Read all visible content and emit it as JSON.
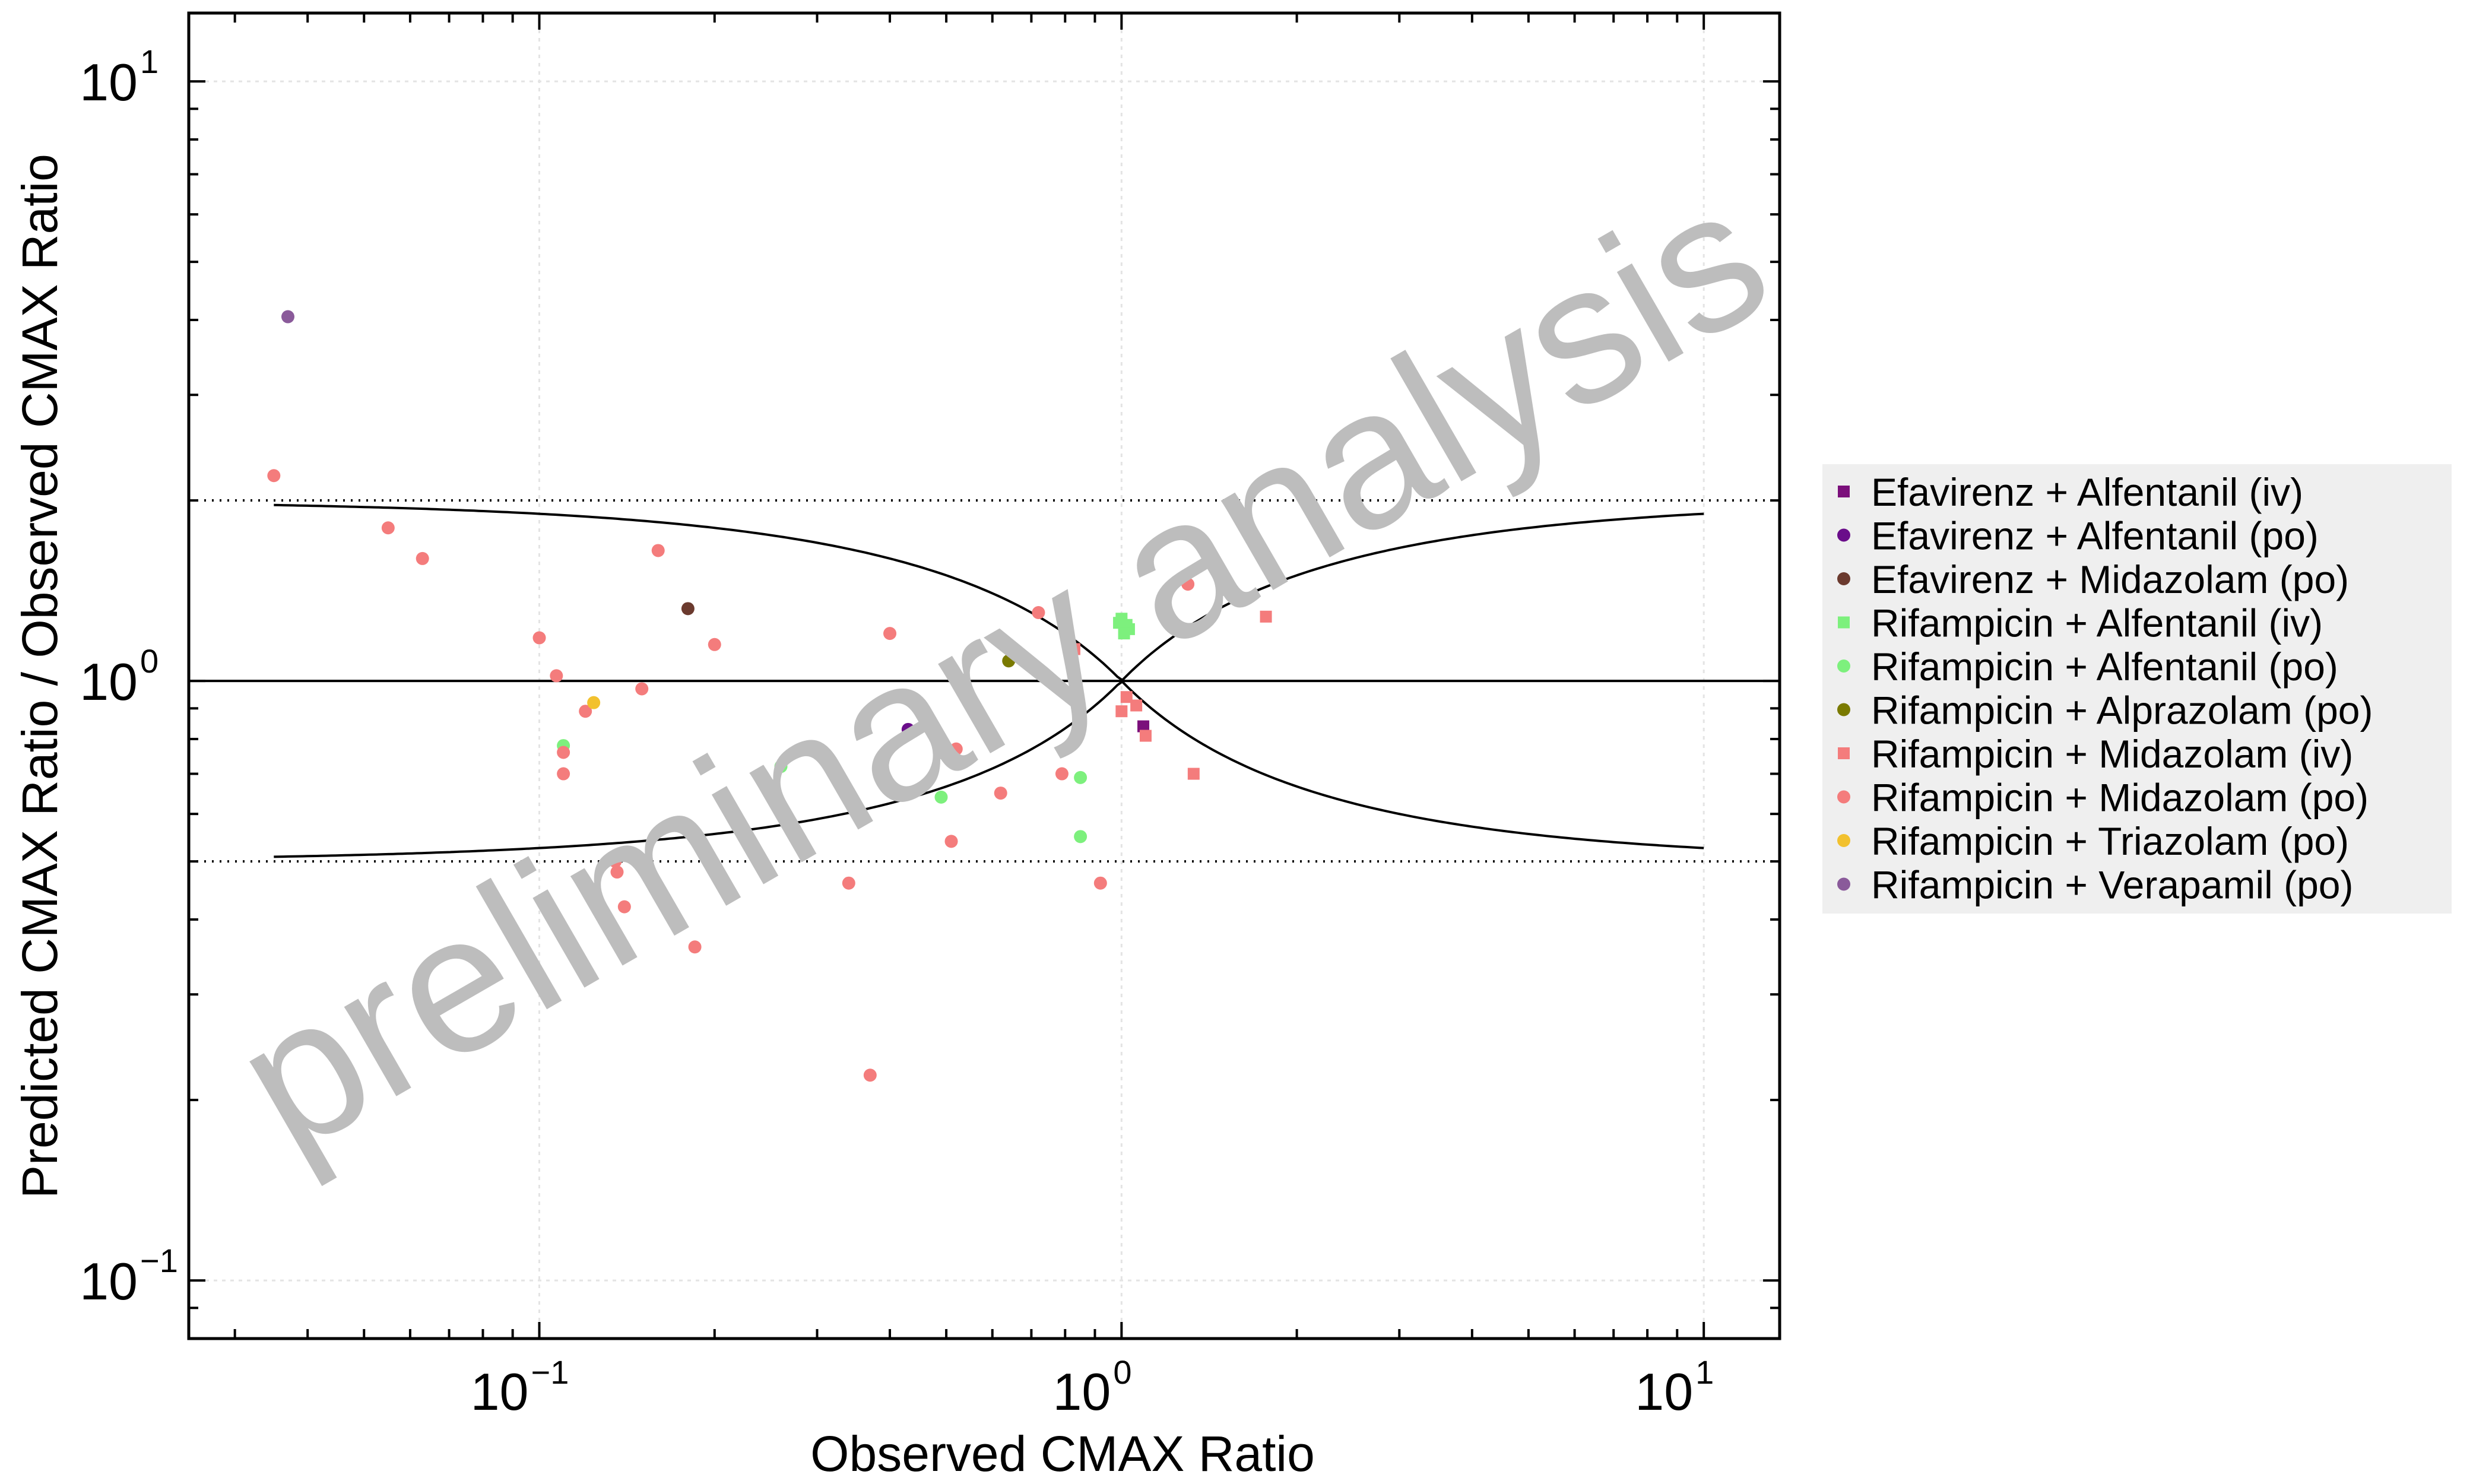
{
  "chart_data": {
    "type": "scatter",
    "xlabel": "Observed CMAX Ratio",
    "ylabel": "Predicted CMAX Ratio / Observed CMAX Ratio",
    "xscale": "log",
    "yscale": "log",
    "xlim": [
      0.025,
      13.5
    ],
    "ylim": [
      0.08,
      13
    ],
    "x_ticks": [
      {
        "value": 0.1,
        "base": "10",
        "exp": "−1"
      },
      {
        "value": 1,
        "base": "10",
        "exp": "0"
      },
      {
        "value": 10,
        "base": "10",
        "exp": "1"
      }
    ],
    "y_ticks": [
      {
        "value": 0.1,
        "base": "10",
        "exp": "−1"
      },
      {
        "value": 1,
        "base": "10",
        "exp": "0"
      },
      {
        "value": 10,
        "base": "10",
        "exp": "1"
      }
    ],
    "grid": true,
    "legend_position": "right",
    "watermark": "preliminary analysis",
    "reference_lines": {
      "identity_y": 1,
      "fold_lines_y": [
        2,
        0.5
      ],
      "guest_limits_delta": 1,
      "x_range": [
        0.035,
        10
      ]
    },
    "series": [
      {
        "name": "Efavirenz + Alfentanil (iv)",
        "color": "#7b0f7b",
        "marker": "square",
        "points": [
          [
            1.09,
            0.84
          ]
        ]
      },
      {
        "name": "Efavirenz + Alfentanil (po)",
        "color": "#6a0d8a",
        "marker": "circle",
        "points": [
          [
            0.43,
            0.83
          ]
        ]
      },
      {
        "name": "Efavirenz + Midazolam (po)",
        "color": "#6b3a2e",
        "marker": "circle",
        "points": [
          [
            0.18,
            1.32
          ]
        ]
      },
      {
        "name": "Rifampicin + Alfentanil (iv)",
        "color": "#7df07d",
        "marker": "square",
        "points": [
          [
            1.0,
            1.27
          ],
          [
            1.02,
            1.24
          ],
          [
            1.03,
            1.22
          ],
          [
            0.99,
            1.25
          ],
          [
            1.01,
            1.2
          ]
        ]
      },
      {
        "name": "Rifampicin + Alfentanil (po)",
        "color": "#7df07d",
        "marker": "circle",
        "points": [
          [
            0.11,
            0.78
          ],
          [
            0.26,
            0.72
          ],
          [
            0.49,
            0.64
          ],
          [
            0.85,
            0.69
          ],
          [
            0.85,
            0.55
          ]
        ]
      },
      {
        "name": "Rifampicin + Alprazolam (po)",
        "color": "#7a7a00",
        "marker": "circle",
        "points": [
          [
            0.64,
            1.08
          ]
        ]
      },
      {
        "name": "Rifampicin + Midazolam (iv)",
        "color": "#f47c7c",
        "marker": "square",
        "points": [
          [
            0.83,
            1.13
          ],
          [
            1.0,
            0.89
          ],
          [
            1.02,
            0.94
          ],
          [
            1.06,
            0.91
          ],
          [
            1.1,
            0.81
          ],
          [
            1.33,
            0.7
          ],
          [
            1.77,
            1.28
          ]
        ]
      },
      {
        "name": "Rifampicin + Midazolam (po)",
        "color": "#f47c7c",
        "marker": "circle",
        "points": [
          [
            0.035,
            2.2
          ],
          [
            0.055,
            1.8
          ],
          [
            0.063,
            1.6
          ],
          [
            0.1,
            1.18
          ],
          [
            0.107,
            1.02
          ],
          [
            0.11,
            0.7
          ],
          [
            0.11,
            0.76
          ],
          [
            0.12,
            0.89
          ],
          [
            0.135,
            0.5
          ],
          [
            0.136,
            0.48
          ],
          [
            0.14,
            0.42
          ],
          [
            0.15,
            0.97
          ],
          [
            0.16,
            1.65
          ],
          [
            0.185,
            0.36
          ],
          [
            0.2,
            1.15
          ],
          [
            0.34,
            0.46
          ],
          [
            0.37,
            0.22
          ],
          [
            0.4,
            1.2
          ],
          [
            0.51,
            0.54
          ],
          [
            0.52,
            0.77
          ],
          [
            0.62,
            0.65
          ],
          [
            0.72,
            1.3
          ],
          [
            0.79,
            0.7
          ],
          [
            0.92,
            0.46
          ],
          [
            1.3,
            1.45
          ]
        ]
      },
      {
        "name": "Rifampicin + Triazolam (po)",
        "color": "#f2c12e",
        "marker": "circle",
        "points": [
          [
            0.124,
            0.92
          ]
        ]
      },
      {
        "name": "Rifampicin + Verapamil (po)",
        "color": "#8a5a9a",
        "marker": "circle",
        "points": [
          [
            0.037,
            4.05
          ]
        ]
      }
    ]
  }
}
